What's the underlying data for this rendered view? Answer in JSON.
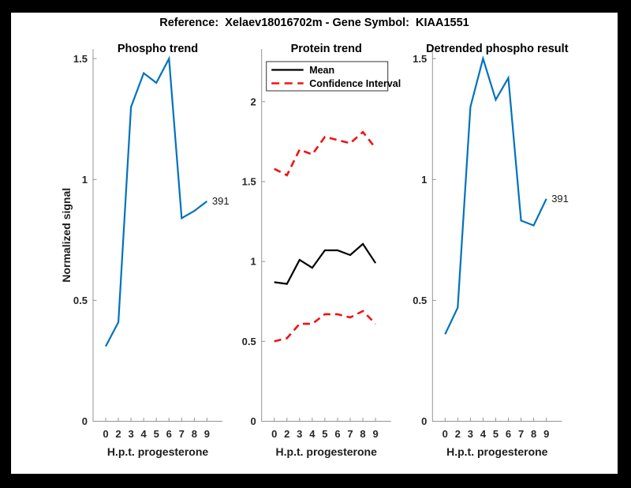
{
  "window": {
    "background": "#000000",
    "canvas": "#ffffff"
  },
  "figure_title": "Reference:  Xelaev18016702m - Gene Symbol:  KIAA1551",
  "colors": {
    "blue": "#0072BD",
    "red": "#F21212",
    "black": "#000000",
    "axis": "#949494",
    "tick_text": "#262626"
  },
  "chart_data": [
    {
      "type": "line",
      "title": "Phospho trend",
      "xlabel": "H.p.t. progesterone",
      "ylabel": "Normalized signal",
      "categories": [
        "0",
        "2",
        "3",
        "4",
        "5",
        "6",
        "7",
        "8",
        "9"
      ],
      "yticks": [
        0,
        0.5,
        1,
        1.5
      ],
      "ylim": [
        0,
        1.54
      ],
      "grid": false,
      "legend": null,
      "end_label": "391",
      "series": [
        {
          "name": "phospho-trend",
          "color": "#0072BD",
          "style": "solid",
          "values": [
            0.31,
            0.41,
            1.3,
            1.44,
            1.4,
            1.5,
            0.84,
            0.87,
            0.91
          ]
        }
      ]
    },
    {
      "type": "line",
      "title": "Protein trend",
      "xlabel": "H.p.t. progesterone",
      "ylabel": "",
      "categories": [
        "0",
        "2",
        "3",
        "4",
        "5",
        "6",
        "7",
        "8",
        "9"
      ],
      "yticks": [
        0,
        0.5,
        1,
        1.5,
        2
      ],
      "ylim": [
        0,
        2.33
      ],
      "grid": false,
      "legend": {
        "position": "northwest",
        "entries": [
          {
            "label": "Mean",
            "style": "solid",
            "color": "#000000"
          },
          {
            "label": "Confidence Interval",
            "style": "dashed",
            "color": "#F21212"
          }
        ]
      },
      "end_label": null,
      "series": [
        {
          "name": "mean",
          "color": "#000000",
          "style": "solid",
          "values": [
            0.87,
            0.86,
            1.01,
            0.96,
            1.07,
            1.07,
            1.04,
            1.11,
            0.99
          ]
        },
        {
          "name": "ci-upper",
          "color": "#F21212",
          "style": "dashed",
          "values": [
            1.58,
            1.54,
            1.7,
            1.67,
            1.78,
            1.76,
            1.74,
            1.81,
            1.71
          ]
        },
        {
          "name": "ci-lower",
          "color": "#F21212",
          "style": "dashed",
          "values": [
            0.5,
            0.52,
            0.61,
            0.61,
            0.67,
            0.67,
            0.65,
            0.69,
            0.61
          ]
        }
      ]
    },
    {
      "type": "line",
      "title": "Detrended phospho result",
      "xlabel": "H.p.t. progesterone",
      "ylabel": "",
      "categories": [
        "0",
        "2",
        "3",
        "4",
        "5",
        "6",
        "7",
        "8",
        "9"
      ],
      "yticks": [
        0,
        0.5,
        1,
        1.5
      ],
      "ylim": [
        0,
        1.54
      ],
      "grid": false,
      "legend": null,
      "end_label": "391",
      "series": [
        {
          "name": "detrended-phospho",
          "color": "#0072BD",
          "style": "solid",
          "values": [
            0.36,
            0.47,
            1.3,
            1.5,
            1.33,
            1.42,
            0.83,
            0.81,
            0.92
          ]
        }
      ]
    }
  ]
}
